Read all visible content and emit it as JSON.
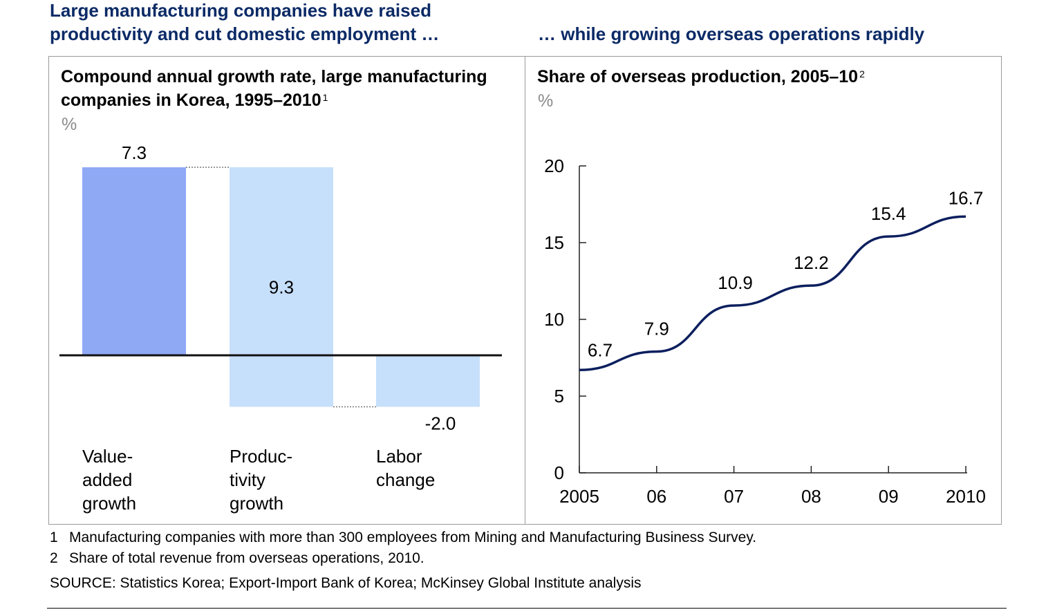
{
  "headlines": {
    "left": "Large manufacturing companies have raised productivity and cut domestic employment …",
    "right": "… while growing overseas operations rapidly"
  },
  "colors": {
    "headline": "#0b2a66",
    "bar_dark": "#8fa9f5",
    "bar_light": "#c6dffb",
    "line": "#0c1f5e"
  },
  "chart_data": [
    {
      "type": "bar",
      "subtype": "waterfall",
      "title": "Compound annual growth rate, large manufacturing companies in Korea, 1995–2010",
      "title_footnote": "1",
      "unit": "%",
      "categories": [
        "Value-added growth",
        "Productivity growth",
        "Labor change"
      ],
      "category_label_lines": [
        [
          "Value-",
          "added",
          "growth"
        ],
        [
          "Produc-",
          "tivity",
          "growth"
        ],
        [
          "Labor",
          "change"
        ]
      ],
      "values": [
        7.3,
        9.3,
        -2.0
      ],
      "data_labels": [
        "7.3",
        "9.3",
        "-2.0"
      ],
      "bars": [
        {
          "start": 0,
          "end": 7.3
        },
        {
          "start": 7.3,
          "end": -2.0
        },
        {
          "start": -2.0,
          "end": 0
        }
      ],
      "grid": false
    },
    {
      "type": "line",
      "title": "Share of overseas production, 2005–10",
      "title_footnote": "2",
      "unit": "%",
      "x": [
        2005,
        2006,
        2007,
        2008,
        2009,
        2010
      ],
      "x_tick_labels": [
        "2005",
        "06",
        "07",
        "08",
        "09",
        "2010"
      ],
      "y_ticks": [
        0,
        5,
        10,
        15,
        20
      ],
      "ylim": [
        0,
        20
      ],
      "series": [
        {
          "values": [
            6.7,
            7.9,
            10.9,
            12.2,
            15.4,
            16.7
          ],
          "labels": [
            "6.7",
            "7.9",
            "10.9",
            "12.2",
            "15.4",
            "16.7"
          ]
        }
      ],
      "grid": false
    }
  ],
  "footnotes": [
    {
      "num": "1",
      "text": "Manufacturing companies with more than 300 employees from Mining and Manufacturing Business Survey."
    },
    {
      "num": "2",
      "text": "Share of total revenue from overseas operations, 2010."
    }
  ],
  "source": "SOURCE: Statistics Korea; Export-Import Bank of Korea; McKinsey Global Institute analysis"
}
